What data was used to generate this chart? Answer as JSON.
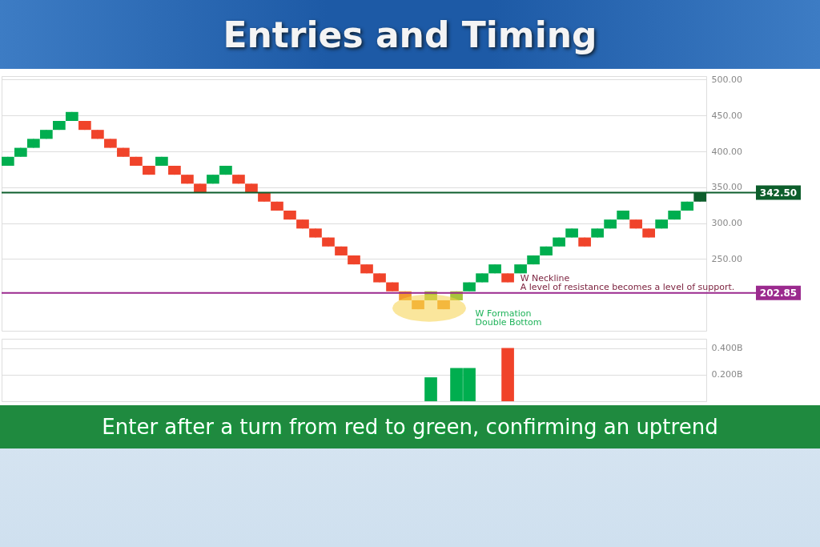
{
  "chart_data": [
    {
      "type": "candlestick",
      "title": "Entries and Timing",
      "categories": [
        null,
        null,
        null,
        null,
        null,
        null,
        null,
        null,
        null,
        null,
        null,
        null,
        null,
        null,
        null,
        null,
        null,
        null,
        null,
        null,
        null,
        null,
        null,
        null,
        null,
        null,
        null,
        null,
        null,
        null,
        null,
        null,
        null,
        null,
        null,
        null,
        null,
        null,
        null,
        null,
        null,
        null,
        null,
        null,
        null,
        null,
        null,
        null,
        null,
        null,
        null,
        null,
        null,
        null,
        null
      ],
      "ohlc": [
        [
          380,
          392.5,
          380,
          392.5
        ],
        [
          392.5,
          405,
          392.5,
          405
        ],
        [
          405,
          417.5,
          405,
          417.5
        ],
        [
          417.5,
          430,
          417.5,
          430
        ],
        [
          430,
          442.5,
          430,
          442.5
        ],
        [
          442.5,
          455,
          442.5,
          455
        ],
        [
          442.5,
          442.5,
          430,
          430
        ],
        [
          430,
          430,
          417.5,
          417.5
        ],
        [
          417.5,
          417.5,
          405,
          405
        ],
        [
          405,
          405,
          392.5,
          392.5
        ],
        [
          392.5,
          392.5,
          380,
          380
        ],
        [
          380,
          380,
          367.5,
          367.5
        ],
        [
          380,
          392.5,
          380,
          392.5
        ],
        [
          380,
          380,
          367.5,
          367.5
        ],
        [
          367.5,
          367.5,
          355,
          355
        ],
        [
          355,
          355,
          342.5,
          342.5
        ],
        [
          355,
          367.5,
          355,
          367.5
        ],
        [
          367.5,
          380,
          367.5,
          380
        ],
        [
          367.5,
          367.5,
          355,
          355
        ],
        [
          355,
          355,
          342.5,
          342.5
        ],
        [
          342.5,
          342.5,
          330,
          330
        ],
        [
          330,
          330,
          317.5,
          317.5
        ],
        [
          317.5,
          317.5,
          305,
          305
        ],
        [
          305,
          305,
          292.5,
          292.5
        ],
        [
          292.5,
          292.5,
          280,
          280
        ],
        [
          280,
          280,
          267.5,
          267.5
        ],
        [
          267.5,
          267.5,
          255,
          255
        ],
        [
          255,
          255,
          242.5,
          242.5
        ],
        [
          242.5,
          242.5,
          230,
          230
        ],
        [
          230,
          230,
          217.5,
          217.5
        ],
        [
          217.5,
          217.5,
          205,
          205
        ],
        [
          205,
          205,
          192.5,
          192.5
        ],
        [
          192.5,
          192.5,
          180,
          180
        ],
        [
          192.5,
          205,
          192.5,
          205
        ],
        [
          192.5,
          192.5,
          180,
          180
        ],
        [
          192.5,
          205,
          192.5,
          205
        ],
        [
          205,
          217.5,
          205,
          217.5
        ],
        [
          217.5,
          230,
          217.5,
          230
        ],
        [
          230,
          242.5,
          230,
          242.5
        ],
        [
          230,
          230,
          217.5,
          217.5
        ],
        [
          230,
          242.5,
          230,
          242.5
        ],
        [
          242.5,
          255,
          242.5,
          255
        ],
        [
          255,
          267.5,
          255,
          267.5
        ],
        [
          267.5,
          280,
          267.5,
          280
        ],
        [
          280,
          292.5,
          280,
          292.5
        ],
        [
          280,
          280,
          267.5,
          267.5
        ],
        [
          280,
          292.5,
          280,
          292.5
        ],
        [
          292.5,
          305,
          292.5,
          305
        ],
        [
          305,
          317.5,
          305,
          317.5
        ],
        [
          305,
          305,
          292.5,
          292.5
        ],
        [
          292.5,
          292.5,
          280,
          280
        ],
        [
          292.5,
          305,
          292.5,
          305
        ],
        [
          305,
          317.5,
          305,
          317.5
        ],
        [
          317.5,
          330,
          317.5,
          330
        ],
        [
          330,
          342.5,
          330,
          342.5
        ]
      ],
      "colors": [
        "#00ae4f",
        "#00ae4f",
        "#00ae4f",
        "#00ae4f",
        "#00ae4f",
        "#00ae4f",
        "#f0432a",
        "#f0432a",
        "#f0432a",
        "#f0432a",
        "#f0432a",
        "#f0432a",
        "#00ae4f",
        "#f0432a",
        "#f0432a",
        "#f0432a",
        "#00ae4f",
        "#00ae4f",
        "#f0432a",
        "#f0432a",
        "#f0432a",
        "#f0432a",
        "#f0432a",
        "#f0432a",
        "#f0432a",
        "#f0432a",
        "#f0432a",
        "#f0432a",
        "#f0432a",
        "#f0432a",
        "#f0432a",
        "#f29a2e",
        "#f29a2e",
        "#a8c43a",
        "#f29a2e",
        "#a8c43a",
        "#00ae4f",
        "#00ae4f",
        "#00ae4f",
        "#f0432a",
        "#00ae4f",
        "#00ae4f",
        "#00ae4f",
        "#00ae4f",
        "#00ae4f",
        "#f0432a",
        "#00ae4f",
        "#00ae4f",
        "#00ae4f",
        "#f0432a",
        "#f0432a",
        "#00ae4f",
        "#00ae4f",
        "#00ae4f",
        "#0d5e2c"
      ],
      "ylim": [
        150,
        505
      ],
      "yticks": [
        {
          "value": 250,
          "label": "250.00"
        },
        {
          "value": 300,
          "label": "300.00"
        },
        {
          "value": 350,
          "label": "350.00"
        },
        {
          "value": 400,
          "label": "400.00"
        },
        {
          "value": 450,
          "label": "450.00"
        },
        {
          "value": 500,
          "label": "500.00"
        }
      ],
      "ref_lines": [
        {
          "axis": "y",
          "value": 202.85,
          "label": "202.85",
          "color": "#9b2a8e"
        },
        {
          "axis": "y",
          "value": 342.5,
          "label": "342.50",
          "color": "#0d5e2c"
        }
      ],
      "annotations": [
        "W Neckline",
        "A level of resistance becomes a level of support.",
        "W Formation",
        "Double Bottom",
        "Enter after a turn from red to green, confirming an uptrend"
      ],
      "grid": "y",
      "tick_labels": "y"
    },
    {
      "type": "bar",
      "categories": [
        null,
        null,
        null,
        null,
        null,
        null,
        null,
        null,
        null,
        null,
        null,
        null,
        null,
        null,
        null,
        null,
        null,
        null,
        null,
        null,
        null,
        null,
        null,
        null,
        null,
        null,
        null,
        null,
        null,
        null,
        null,
        null,
        null,
        null,
        null,
        null,
        null,
        null,
        null,
        null,
        null,
        null,
        null,
        null,
        null,
        null,
        null,
        null,
        null,
        null,
        null,
        null,
        null,
        null,
        null
      ],
      "values": [
        null,
        null,
        null,
        null,
        null,
        null,
        null,
        null,
        null,
        null,
        null,
        null,
        null,
        null,
        null,
        null,
        null,
        null,
        null,
        null,
        null,
        null,
        null,
        null,
        null,
        null,
        null,
        null,
        null,
        null,
        null,
        null,
        null,
        0.18,
        null,
        0.25,
        0.25,
        null,
        null,
        0.4,
        null,
        null,
        null,
        null,
        null,
        null,
        null,
        null,
        null,
        null,
        null,
        null,
        null,
        null,
        null
      ],
      "colors": [
        null,
        null,
        null,
        null,
        null,
        null,
        null,
        null,
        null,
        null,
        null,
        null,
        null,
        null,
        null,
        null,
        null,
        null,
        null,
        null,
        null,
        null,
        null,
        null,
        null,
        null,
        null,
        null,
        null,
        null,
        null,
        null,
        null,
        "#00ae4f",
        null,
        "#00ae4f",
        "#00ae4f",
        null,
        null,
        "#f0432a",
        null,
        null,
        null,
        null,
        null,
        null,
        null,
        null,
        null,
        null,
        null,
        null,
        null,
        null,
        null
      ],
      "ylim": [
        0,
        0.47
      ],
      "yticks": [
        {
          "value": 0.2,
          "label": "0.200B"
        },
        {
          "value": 0.4,
          "label": "0.400B"
        }
      ],
      "grid": "y",
      "tick_labels": "y"
    }
  ]
}
